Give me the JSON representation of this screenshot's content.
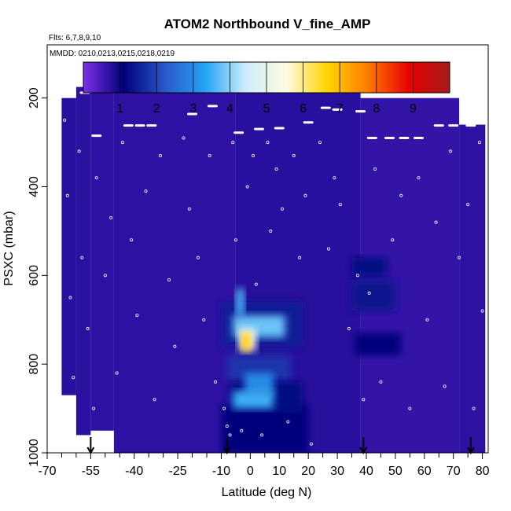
{
  "chart_data": {
    "type": "heatmap",
    "title": "ATOM2 Northbound V_fine_AMP",
    "subtitle_flights": "Flts: 6,7,8,9,10",
    "subtitle_dates": "MMDD: 0210,0213,0215,0218,0219",
    "xlabel": "Latitude (deg N)",
    "ylabel": "PSXC (mbar)",
    "xlim": [
      -70,
      82
    ],
    "ylim": [
      1000,
      80
    ],
    "x_ticks": [
      -70,
      -55,
      -40,
      -25,
      -10,
      0,
      10,
      20,
      30,
      40,
      50,
      60,
      70,
      80
    ],
    "x_tick_labels": [
      "-70",
      "-55",
      "-40",
      "-25",
      "-10",
      "0",
      "10",
      "20",
      "30",
      "40",
      "50",
      "60",
      "70",
      "80"
    ],
    "x_minor_ticks": [
      -65,
      -60,
      -50,
      -45,
      -35,
      -30,
      -20,
      -15,
      -5,
      5,
      15,
      25,
      35,
      45,
      55,
      65,
      75
    ],
    "y_ticks": [
      200,
      400,
      600,
      800,
      1000
    ],
    "y_tick_labels": [
      "200",
      "400",
      "600",
      "800",
      "1000"
    ],
    "colorbar": {
      "range": [
        0,
        10
      ],
      "ticks": [
        1,
        2,
        3,
        4,
        5,
        6,
        7,
        8,
        9
      ],
      "tick_labels": [
        "1",
        "2",
        "3",
        "4",
        "5",
        "6",
        "7",
        "8",
        "9"
      ],
      "colors": [
        "#7b2fe6",
        "#00007a",
        "#2a57c8",
        "#24a4f4",
        "#cfeefc",
        "#fffbe0",
        "#ffd400",
        "#ff7a00",
        "#e80000",
        "#a51b1b"
      ]
    },
    "regions": [
      {
        "lat0": -65,
        "lat1": -60,
        "p0": 200,
        "p1": 870,
        "value": 0.75
      },
      {
        "lat0": -60,
        "lat1": -55,
        "p0": 175,
        "p1": 960,
        "value": 0.72
      },
      {
        "lat0": -55,
        "lat1": -47,
        "p0": 170,
        "p1": 950,
        "value": 0.7
      },
      {
        "lat0": -47,
        "lat1": -5,
        "p0": 170,
        "p1": 1000,
        "value": 0.7
      },
      {
        "lat0": -5,
        "lat1": 38,
        "p0": 170,
        "p1": 1000,
        "value": 0.75
      },
      {
        "lat0": 38,
        "lat1": 72,
        "p0": 200,
        "p1": 1000,
        "value": 0.65
      },
      {
        "lat0": 72,
        "lat1": 81,
        "p0": 260,
        "p1": 1000,
        "value": 0.7
      },
      {
        "lat0": -10,
        "lat1": 20,
        "p0": 890,
        "p1": 1000,
        "value": 1.1
      },
      {
        "lat0": -10,
        "lat1": 18,
        "p0": 660,
        "p1": 760,
        "value": 1.5
      },
      {
        "lat0": -8,
        "lat1": 14,
        "p0": 780,
        "p1": 840,
        "value": 1.8
      },
      {
        "lat0": -7,
        "lat1": 18,
        "p0": 840,
        "p1": 910,
        "value": 1.2
      },
      {
        "lat0": 35,
        "lat1": 47,
        "p0": 560,
        "p1": 600,
        "value": 1.2
      },
      {
        "lat0": 35,
        "lat1": 50,
        "p0": 610,
        "p1": 680,
        "value": 1.4
      },
      {
        "lat0": 36,
        "lat1": 52,
        "p0": 730,
        "p1": 780,
        "value": 1.1
      },
      {
        "lat0": -2,
        "lat1": 8,
        "p0": 820,
        "p1": 870,
        "value": 3.0
      },
      {
        "lat0": -6,
        "lat1": 8,
        "p0": 860,
        "p1": 900,
        "value": 3.5
      },
      {
        "lat0": -6,
        "lat1": 12,
        "p0": 690,
        "p1": 740,
        "value": 3.8
      },
      {
        "lat0": -5,
        "lat1": -2,
        "p0": 630,
        "p1": 690,
        "value": 3.6
      },
      {
        "lat0": -4,
        "lat1": 2,
        "p0": 720,
        "p1": 770,
        "value": 5.5
      },
      {
        "lat0": -3,
        "lat1": 0,
        "p0": 730,
        "p1": 770,
        "value": 6.8
      }
    ],
    "ceiling_points": [
      [
        -57,
        188
      ],
      [
        -53,
        285
      ],
      [
        -42,
        262
      ],
      [
        -38,
        262
      ],
      [
        -34,
        262
      ],
      [
        -20,
        236
      ],
      [
        -13,
        218
      ],
      [
        -4,
        278
      ],
      [
        3,
        270
      ],
      [
        10,
        268
      ],
      [
        20,
        255
      ],
      [
        26,
        222
      ],
      [
        30,
        226
      ],
      [
        38,
        230
      ],
      [
        42,
        290
      ],
      [
        48,
        290
      ],
      [
        53,
        290
      ],
      [
        58,
        290
      ],
      [
        65,
        262
      ],
      [
        70,
        262
      ],
      [
        76,
        262
      ]
    ],
    "scatter_markers": [
      [
        -64,
        250
      ],
      [
        -63,
        420
      ],
      [
        -62,
        650
      ],
      [
        -61,
        830
      ],
      [
        -59,
        320
      ],
      [
        -58,
        560
      ],
      [
        -56,
        720
      ],
      [
        -54,
        900
      ],
      [
        -53,
        380
      ],
      [
        -50,
        600
      ],
      [
        -48,
        470
      ],
      [
        -46,
        820
      ],
      [
        -44,
        300
      ],
      [
        -41,
        520
      ],
      [
        -39,
        690
      ],
      [
        -36,
        410
      ],
      [
        -33,
        880
      ],
      [
        -31,
        330
      ],
      [
        -28,
        610
      ],
      [
        -26,
        760
      ],
      [
        -23,
        290
      ],
      [
        -21,
        450
      ],
      [
        -18,
        560
      ],
      [
        -16,
        700
      ],
      [
        -14,
        330
      ],
      [
        -12,
        840
      ],
      [
        -9,
        900
      ],
      [
        -8,
        940
      ],
      [
        -7,
        960
      ],
      [
        -6,
        300
      ],
      [
        -5,
        520
      ],
      [
        -3,
        950
      ],
      [
        -1,
        400
      ],
      [
        1,
        330
      ],
      [
        2,
        620
      ],
      [
        4,
        960
      ],
      [
        6,
        300
      ],
      [
        7,
        500
      ],
      [
        9,
        360
      ],
      [
        11,
        450
      ],
      [
        13,
        930
      ],
      [
        15,
        330
      ],
      [
        17,
        560
      ],
      [
        19,
        420
      ],
      [
        21,
        980
      ],
      [
        24,
        300
      ],
      [
        27,
        540
      ],
      [
        29,
        380
      ],
      [
        31,
        440
      ],
      [
        34,
        720
      ],
      [
        37,
        600
      ],
      [
        39,
        880
      ],
      [
        41,
        640
      ],
      [
        43,
        360
      ],
      [
        45,
        840
      ],
      [
        49,
        520
      ],
      [
        52,
        420
      ],
      [
        55,
        900
      ],
      [
        58,
        380
      ],
      [
        61,
        700
      ],
      [
        64,
        480
      ],
      [
        67,
        850
      ],
      [
        69,
        320
      ],
      [
        72,
        560
      ],
      [
        75,
        440
      ],
      [
        77,
        900
      ],
      [
        79,
        300
      ],
      [
        80,
        680
      ]
    ],
    "arrow_markers": [
      -55,
      -8,
      39,
      76
    ]
  }
}
